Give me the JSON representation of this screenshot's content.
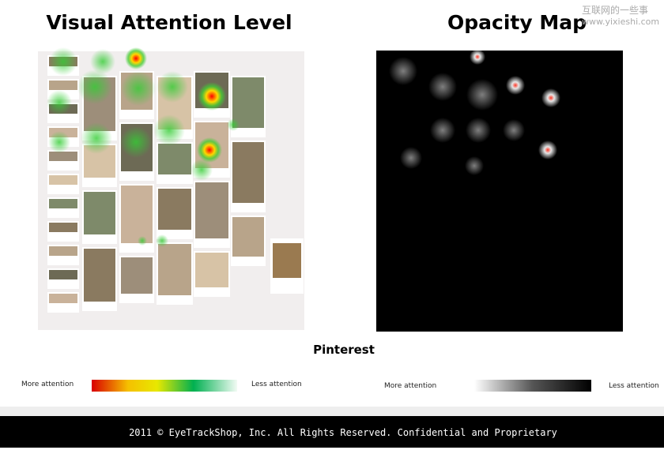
{
  "left_panel": {
    "title": "Visual Attention Level"
  },
  "right_panel": {
    "title": "Opacity Map"
  },
  "watermark": {
    "line1": "互联网的一些事",
    "line2": "www.yixieshi.com"
  },
  "caption": "Pinterest",
  "left_legend": {
    "start": "More attention",
    "end": "Less attention"
  },
  "right_legend": {
    "start": "More attention",
    "end": "Less attention"
  },
  "footer": "2011 © EyeTrackShop, Inc. All Rights Reserved. Confidential and Proprietary"
}
